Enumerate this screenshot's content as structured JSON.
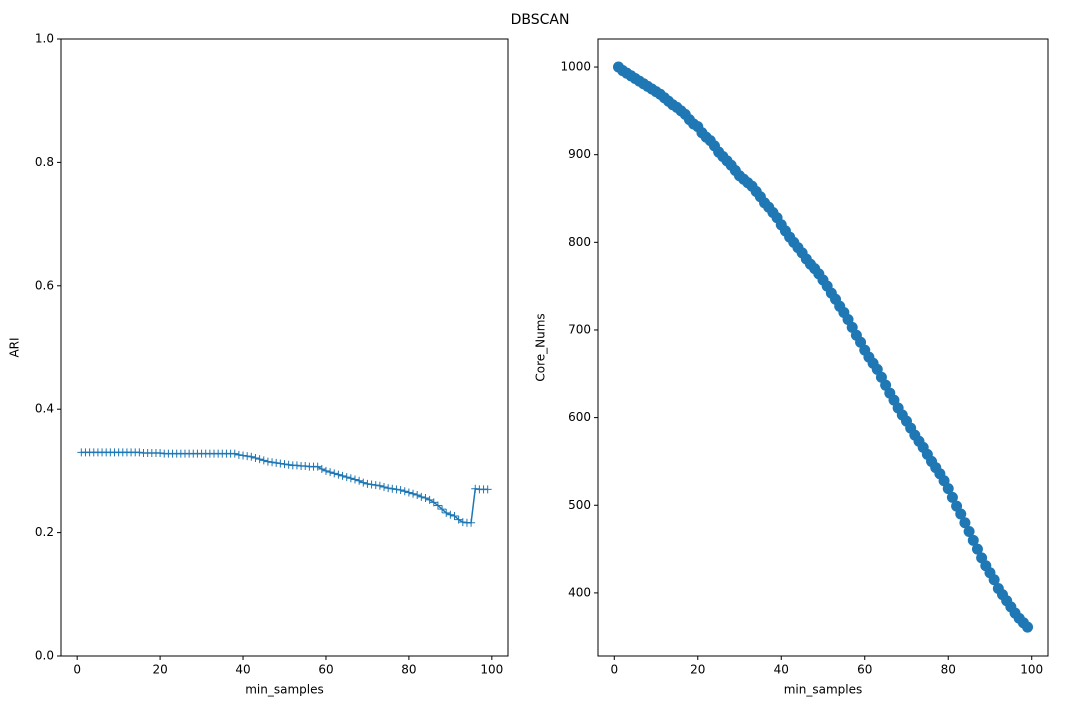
{
  "title": "DBSCAN",
  "chart_data": [
    {
      "type": "line",
      "marker": "+",
      "color": "#1f77b4",
      "xlabel": "min_samples",
      "ylabel": "ARI",
      "xlim": [
        -3.9,
        103.9
      ],
      "ylim": [
        0,
        1
      ],
      "xticks": [
        0,
        20,
        40,
        60,
        80,
        100
      ],
      "yticks": [
        {
          "value": 0,
          "label": "0.0"
        },
        0.2,
        0.4,
        0.6,
        0.8,
        {
          "value": 1,
          "label": "1.0"
        }
      ],
      "x": [
        1,
        2,
        3,
        4,
        5,
        6,
        7,
        8,
        9,
        10,
        11,
        12,
        13,
        14,
        15,
        16,
        17,
        18,
        19,
        20,
        21,
        22,
        23,
        24,
        25,
        26,
        27,
        28,
        29,
        30,
        31,
        32,
        33,
        34,
        35,
        36,
        37,
        38,
        39,
        40,
        41,
        42,
        43,
        44,
        45,
        46,
        47,
        48,
        49,
        50,
        51,
        52,
        53,
        54,
        55,
        56,
        57,
        58,
        59,
        60,
        61,
        62,
        63,
        64,
        65,
        66,
        67,
        68,
        69,
        70,
        71,
        72,
        73,
        74,
        75,
        76,
        77,
        78,
        79,
        80,
        81,
        82,
        83,
        84,
        85,
        86,
        87,
        88,
        89,
        90,
        91,
        92,
        93,
        94,
        95,
        96,
        97,
        98,
        99
      ],
      "values": [
        0.33,
        0.33,
        0.33,
        0.33,
        0.33,
        0.33,
        0.33,
        0.33,
        0.33,
        0.33,
        0.33,
        0.33,
        0.33,
        0.33,
        0.33,
        0.329,
        0.329,
        0.329,
        0.329,
        0.329,
        0.328,
        0.328,
        0.328,
        0.328,
        0.328,
        0.328,
        0.328,
        0.328,
        0.328,
        0.328,
        0.328,
        0.328,
        0.328,
        0.328,
        0.328,
        0.328,
        0.328,
        0.328,
        0.326,
        0.325,
        0.324,
        0.323,
        0.321,
        0.319,
        0.317,
        0.315,
        0.314,
        0.313,
        0.312,
        0.311,
        0.31,
        0.309,
        0.309,
        0.308,
        0.308,
        0.307,
        0.307,
        0.307,
        0.303,
        0.3,
        0.298,
        0.296,
        0.294,
        0.292,
        0.29,
        0.288,
        0.286,
        0.284,
        0.281,
        0.279,
        0.278,
        0.277,
        0.276,
        0.274,
        0.272,
        0.271,
        0.27,
        0.269,
        0.267,
        0.265,
        0.263,
        0.261,
        0.258,
        0.256,
        0.253,
        0.249,
        0.244,
        0.238,
        0.232,
        0.229,
        0.227,
        0.221,
        0.217,
        0.216,
        0.216,
        0.271,
        0.27,
        0.27,
        0.27
      ]
    },
    {
      "type": "scatter",
      "color": "#1f77b4",
      "xlabel": "min_samples",
      "ylabel": "Core_Nums",
      "xlim": [
        -3.9,
        103.9
      ],
      "ylim": [
        328,
        1032
      ],
      "xticks": [
        0,
        20,
        40,
        60,
        80,
        100
      ],
      "yticks": [
        400,
        500,
        600,
        700,
        800,
        900,
        1000
      ],
      "x": [
        1,
        2,
        3,
        4,
        5,
        6,
        7,
        8,
        9,
        10,
        11,
        12,
        13,
        14,
        15,
        16,
        17,
        18,
        19,
        20,
        21,
        22,
        23,
        24,
        25,
        26,
        27,
        28,
        29,
        30,
        31,
        32,
        33,
        34,
        35,
        36,
        37,
        38,
        39,
        40,
        41,
        42,
        43,
        44,
        45,
        46,
        47,
        48,
        49,
        50,
        51,
        52,
        53,
        54,
        55,
        56,
        57,
        58,
        59,
        60,
        61,
        62,
        63,
        64,
        65,
        66,
        67,
        68,
        69,
        70,
        71,
        72,
        73,
        74,
        75,
        76,
        77,
        78,
        79,
        80,
        81,
        82,
        83,
        84,
        85,
        86,
        87,
        88,
        89,
        90,
        91,
        92,
        93,
        94,
        95,
        96,
        97,
        98,
        99
      ],
      "values": [
        1000,
        996,
        993,
        990,
        987,
        984,
        981,
        978,
        975,
        972,
        969,
        965,
        961,
        957,
        954,
        950,
        946,
        940,
        935,
        932,
        925,
        920,
        916,
        910,
        903,
        898,
        893,
        888,
        882,
        876,
        872,
        868,
        864,
        858,
        852,
        845,
        840,
        834,
        828,
        820,
        813,
        806,
        800,
        794,
        788,
        781,
        775,
        770,
        764,
        757,
        750,
        742,
        735,
        727,
        720,
        712,
        703,
        694,
        686,
        677,
        669,
        662,
        655,
        646,
        637,
        628,
        620,
        611,
        603,
        596,
        588,
        580,
        573,
        566,
        558,
        550,
        543,
        536,
        528,
        519,
        509,
        499,
        490,
        480,
        470,
        460,
        450,
        440,
        431,
        423,
        415,
        405,
        398,
        391,
        384,
        377,
        371,
        366,
        361
      ]
    }
  ]
}
